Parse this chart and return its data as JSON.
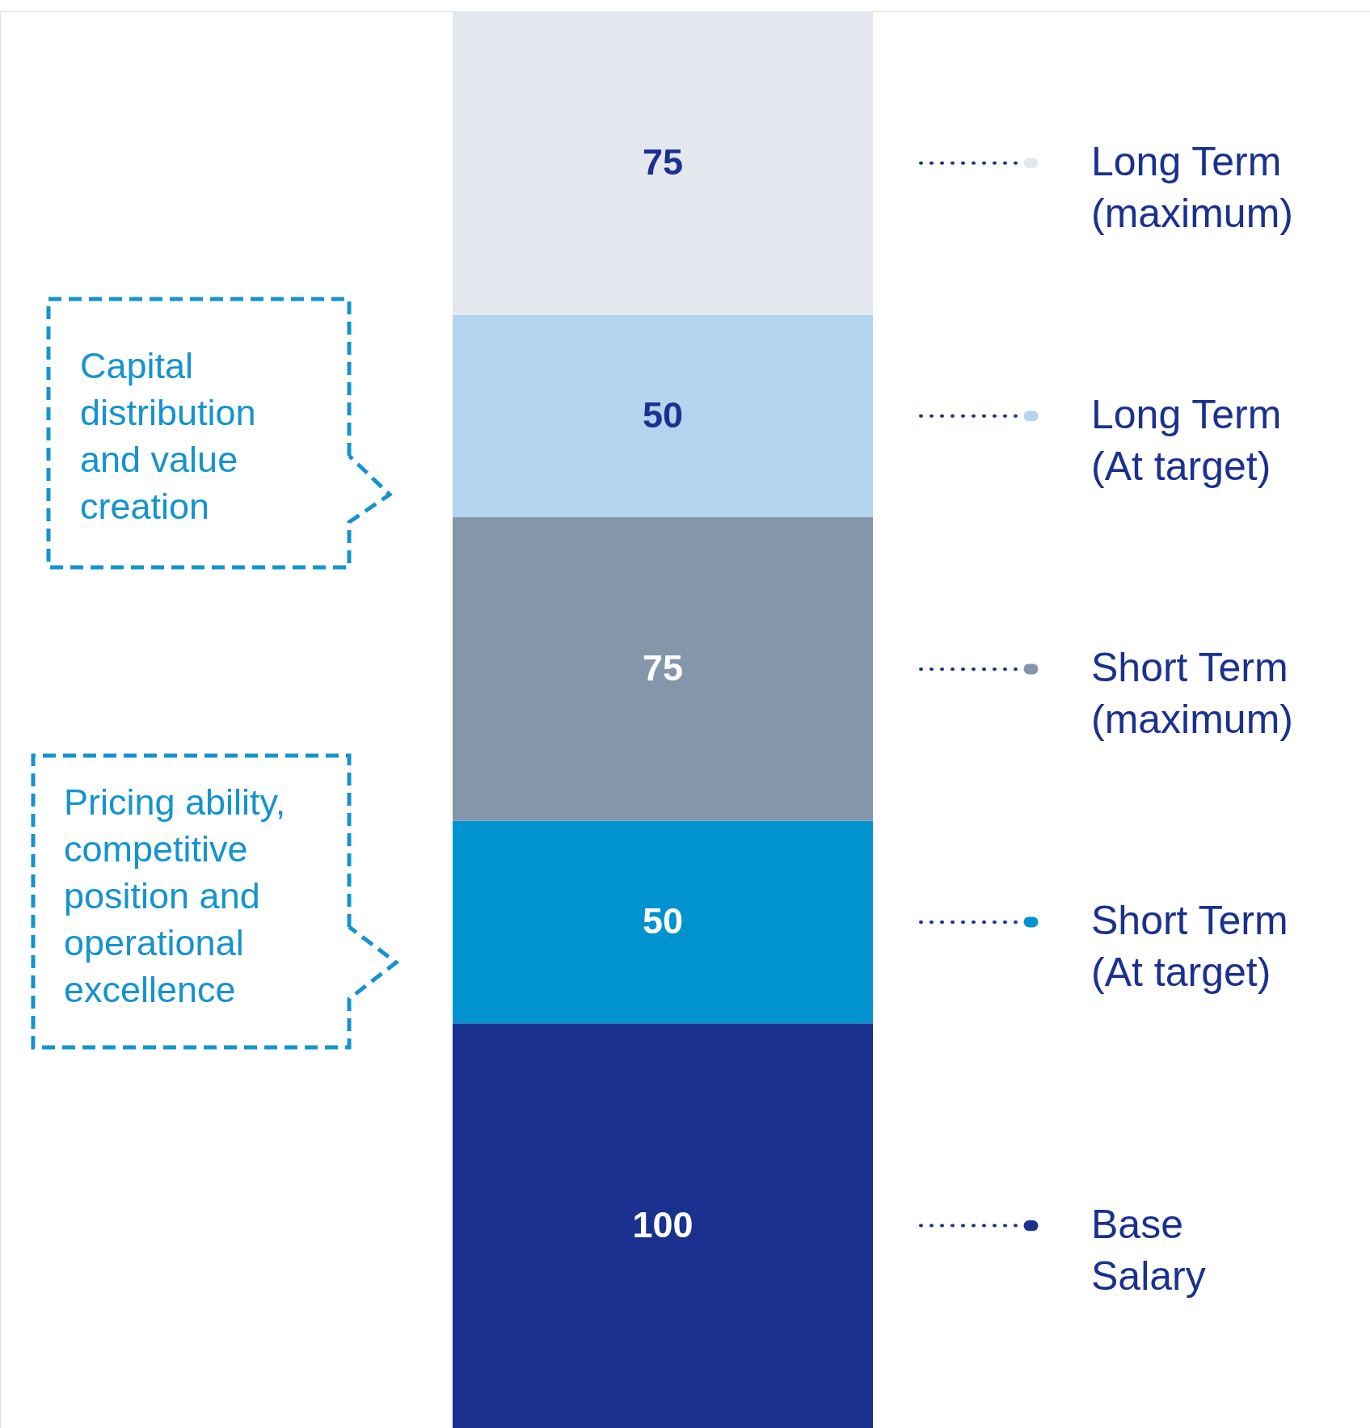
{
  "chart_data": {
    "type": "bar",
    "stacked": true,
    "legend": "right",
    "data_labels": true,
    "categories": [
      null
    ],
    "series": [
      {
        "name": "Base Salary",
        "color": "#1a3190",
        "values": [
          100
        ]
      },
      {
        "name": "Short Term (At target)",
        "color": "#0093d0",
        "values": [
          50
        ]
      },
      {
        "name": "Short Term (maximum)",
        "color": "#8497aa",
        "values": [
          75
        ]
      },
      {
        "name": "Long Term (At target)",
        "color": "#b3d4ef",
        "values": [
          50
        ]
      },
      {
        "name": "Long Term (maximum)",
        "color": "#e4e8ee",
        "values": [
          75
        ]
      }
    ],
    "annotations": [
      "Capital\ndistribution\nand value\ncreation",
      "Pricing ability,\ncompetitive\nposition and\noperational\nexcellence"
    ]
  }
}
